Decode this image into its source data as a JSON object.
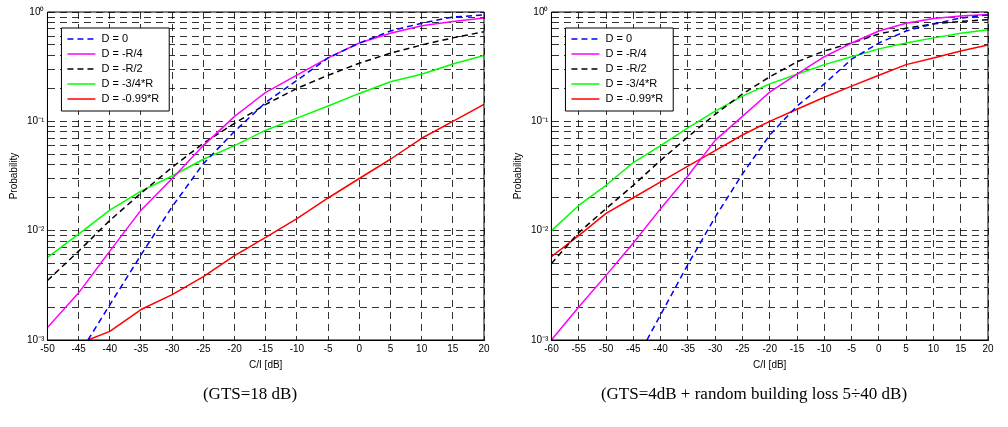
{
  "chart_data": [
    {
      "type": "line",
      "xlabel": "C/I [dB]",
      "ylabel": "Probability",
      "log": "y",
      "grid": true,
      "legend": "top left",
      "marker": "none",
      "xlim": [
        -50,
        20
      ],
      "xticks": [
        -50,
        -45,
        -40,
        -35,
        -30,
        -25,
        -20,
        -15,
        -10,
        -5,
        0,
        5,
        10,
        15,
        20
      ],
      "ylim": [
        0.001,
        1
      ],
      "yticks": [
        {
          "value": 0.001,
          "label": "10⁻³"
        },
        {
          "value": 0.002,
          "label": null
        },
        {
          "value": 0.003,
          "label": null
        },
        {
          "value": 0.004,
          "label": null
        },
        {
          "value": 0.005,
          "label": null
        },
        {
          "value": 0.006,
          "label": null
        },
        {
          "value": 0.007,
          "label": null
        },
        {
          "value": 0.008,
          "label": null
        },
        {
          "value": 0.009,
          "label": null
        },
        {
          "value": 0.01,
          "label": "10⁻²"
        },
        {
          "value": 0.02,
          "label": null
        },
        {
          "value": 0.03,
          "label": null
        },
        {
          "value": 0.04,
          "label": null
        },
        {
          "value": 0.05,
          "label": null
        },
        {
          "value": 0.06,
          "label": null
        },
        {
          "value": 0.07,
          "label": null
        },
        {
          "value": 0.08,
          "label": null
        },
        {
          "value": 0.09,
          "label": null
        },
        {
          "value": 0.1,
          "label": "10⁻¹"
        },
        {
          "value": 0.2,
          "label": null
        },
        {
          "value": 0.3,
          "label": null
        },
        {
          "value": 0.4,
          "label": null
        },
        {
          "value": 0.5,
          "label": null
        },
        {
          "value": 0.6,
          "label": null
        },
        {
          "value": 0.7,
          "label": null
        },
        {
          "value": 0.8,
          "label": null
        },
        {
          "value": 0.9,
          "label": null
        },
        {
          "value": 1,
          "label": "10⁰"
        }
      ],
      "x": [
        -50,
        -45,
        -40,
        -35,
        -30,
        -25,
        -20,
        -15,
        -10,
        -5,
        0,
        5,
        10,
        15,
        20
      ],
      "annotations": [
        "(GTS=18 dB)"
      ],
      "series": [
        {
          "name": "D = 0",
          "color": "#0000ff",
          "line_style": "dashed",
          "x": [
            -43.5,
            -40,
            -35,
            -30,
            -25,
            -20,
            -15,
            -10,
            -5,
            0,
            5,
            10,
            15,
            20
          ],
          "values": [
            0.001,
            0.0021,
            0.006,
            0.0166,
            0.041,
            0.081,
            0.149,
            0.237,
            0.38,
            0.52,
            0.67,
            0.79,
            0.9,
            0.94
          ]
        },
        {
          "name": "D = -R/4",
          "color": "#ff00ff",
          "line_style": "solid",
          "values": [
            0.0013,
            0.0027,
            0.0065,
            0.0154,
            0.03,
            0.06,
            0.111,
            0.184,
            0.265,
            0.38,
            0.52,
            0.64,
            0.75,
            0.82,
            0.88
          ]
        },
        {
          "name": "D = -R/2",
          "color": "#000000",
          "line_style": "dashed",
          "values": [
            0.0035,
            0.0065,
            0.0124,
            0.022,
            0.038,
            0.063,
            0.096,
            0.143,
            0.2,
            0.264,
            0.34,
            0.42,
            0.5,
            0.58,
            0.66
          ]
        },
        {
          "name": "D = -3/4*R",
          "color": "#00ff00",
          "line_style": "solid",
          "values": [
            0.0057,
            0.0093,
            0.0154,
            0.023,
            0.0316,
            0.045,
            0.06,
            0.083,
            0.107,
            0.138,
            0.18,
            0.23,
            0.27,
            0.335,
            0.4
          ]
        },
        {
          "name": "D = -0.99*R",
          "color": "#ff0000",
          "line_style": "solid",
          "x": [
            -43.5,
            -40,
            -35,
            -30,
            -25,
            -20,
            -15,
            -10,
            -5,
            0,
            5,
            10,
            15,
            20
          ],
          "values": [
            0.001,
            0.0012,
            0.0019,
            0.0026,
            0.0038,
            0.0059,
            0.0087,
            0.0129,
            0.0199,
            0.03,
            0.045,
            0.07,
            0.1,
            0.143
          ]
        }
      ]
    },
    {
      "type": "line",
      "xlabel": "C/I [dB]",
      "ylabel": "Probability",
      "log": "y",
      "grid": true,
      "legend": "top left",
      "marker": "none",
      "xlim": [
        -60,
        20
      ],
      "xticks": [
        -60,
        -55,
        -50,
        -45,
        -40,
        -35,
        -30,
        -25,
        -20,
        -15,
        -10,
        -5,
        0,
        5,
        10,
        15,
        20
      ],
      "ylim": [
        0.001,
        1
      ],
      "yticks": [
        {
          "value": 0.001,
          "label": "10⁻³"
        },
        {
          "value": 0.002,
          "label": null
        },
        {
          "value": 0.003,
          "label": null
        },
        {
          "value": 0.004,
          "label": null
        },
        {
          "value": 0.005,
          "label": null
        },
        {
          "value": 0.006,
          "label": null
        },
        {
          "value": 0.007,
          "label": null
        },
        {
          "value": 0.008,
          "label": null
        },
        {
          "value": 0.009,
          "label": null
        },
        {
          "value": 0.01,
          "label": "10⁻²"
        },
        {
          "value": 0.02,
          "label": null
        },
        {
          "value": 0.03,
          "label": null
        },
        {
          "value": 0.04,
          "label": null
        },
        {
          "value": 0.05,
          "label": null
        },
        {
          "value": 0.06,
          "label": null
        },
        {
          "value": 0.07,
          "label": null
        },
        {
          "value": 0.08,
          "label": null
        },
        {
          "value": 0.09,
          "label": null
        },
        {
          "value": 0.1,
          "label": "10⁻¹"
        },
        {
          "value": 0.2,
          "label": null
        },
        {
          "value": 0.3,
          "label": null
        },
        {
          "value": 0.4,
          "label": null
        },
        {
          "value": 0.5,
          "label": null
        },
        {
          "value": 0.6,
          "label": null
        },
        {
          "value": 0.7,
          "label": null
        },
        {
          "value": 0.8,
          "label": null
        },
        {
          "value": 0.9,
          "label": null
        },
        {
          "value": 1,
          "label": "10⁰"
        }
      ],
      "x": [
        -60,
        -55,
        -50,
        -45,
        -40,
        -35,
        -30,
        -25,
        -20,
        -15,
        -10,
        -5,
        0,
        5,
        10,
        15,
        20
      ],
      "annotations": [
        "(GTS=4dB + random building loss 5÷40 dB)"
      ],
      "series": [
        {
          "name": "D = 0",
          "color": "#0000ff",
          "line_style": "dashed",
          "x": [
            -42.5,
            -40,
            -35,
            -30,
            -25,
            -20,
            -15,
            -10,
            -5,
            0,
            5,
            10,
            15,
            20
          ],
          "values": [
            0.001,
            0.0017,
            0.0049,
            0.0133,
            0.033,
            0.075,
            0.138,
            0.22,
            0.37,
            0.52,
            0.67,
            0.78,
            0.88,
            0.94
          ]
        },
        {
          "name": "D = -R/4",
          "color": "#ff00ff",
          "line_style": "solid",
          "values": [
            0.001,
            0.002,
            0.0039,
            0.0077,
            0.0159,
            0.0316,
            0.067,
            0.111,
            0.185,
            0.27,
            0.39,
            0.52,
            0.67,
            0.79,
            0.87,
            0.92,
            0.95
          ]
        },
        {
          "name": "D = -R/2",
          "color": "#000000",
          "line_style": "dashed",
          "values": [
            0.005,
            0.0096,
            0.0159,
            0.026,
            0.044,
            0.072,
            0.116,
            0.178,
            0.255,
            0.35,
            0.44,
            0.52,
            0.63,
            0.71,
            0.78,
            0.82,
            0.85
          ]
        },
        {
          "name": "D = -3/4*R",
          "color": "#00ff00",
          "line_style": "solid",
          "values": [
            0.01,
            0.017,
            0.026,
            0.042,
            0.06,
            0.087,
            0.124,
            0.17,
            0.22,
            0.27,
            0.33,
            0.39,
            0.46,
            0.52,
            0.58,
            0.64,
            0.69
          ]
        },
        {
          "name": "D = -0.99*R",
          "color": "#ff0000",
          "line_style": "solid",
          "values": [
            0.0058,
            0.009,
            0.0144,
            0.02,
            0.028,
            0.039,
            0.054,
            0.075,
            0.1,
            0.129,
            0.166,
            0.21,
            0.264,
            0.33,
            0.38,
            0.44,
            0.5
          ]
        }
      ]
    }
  ]
}
